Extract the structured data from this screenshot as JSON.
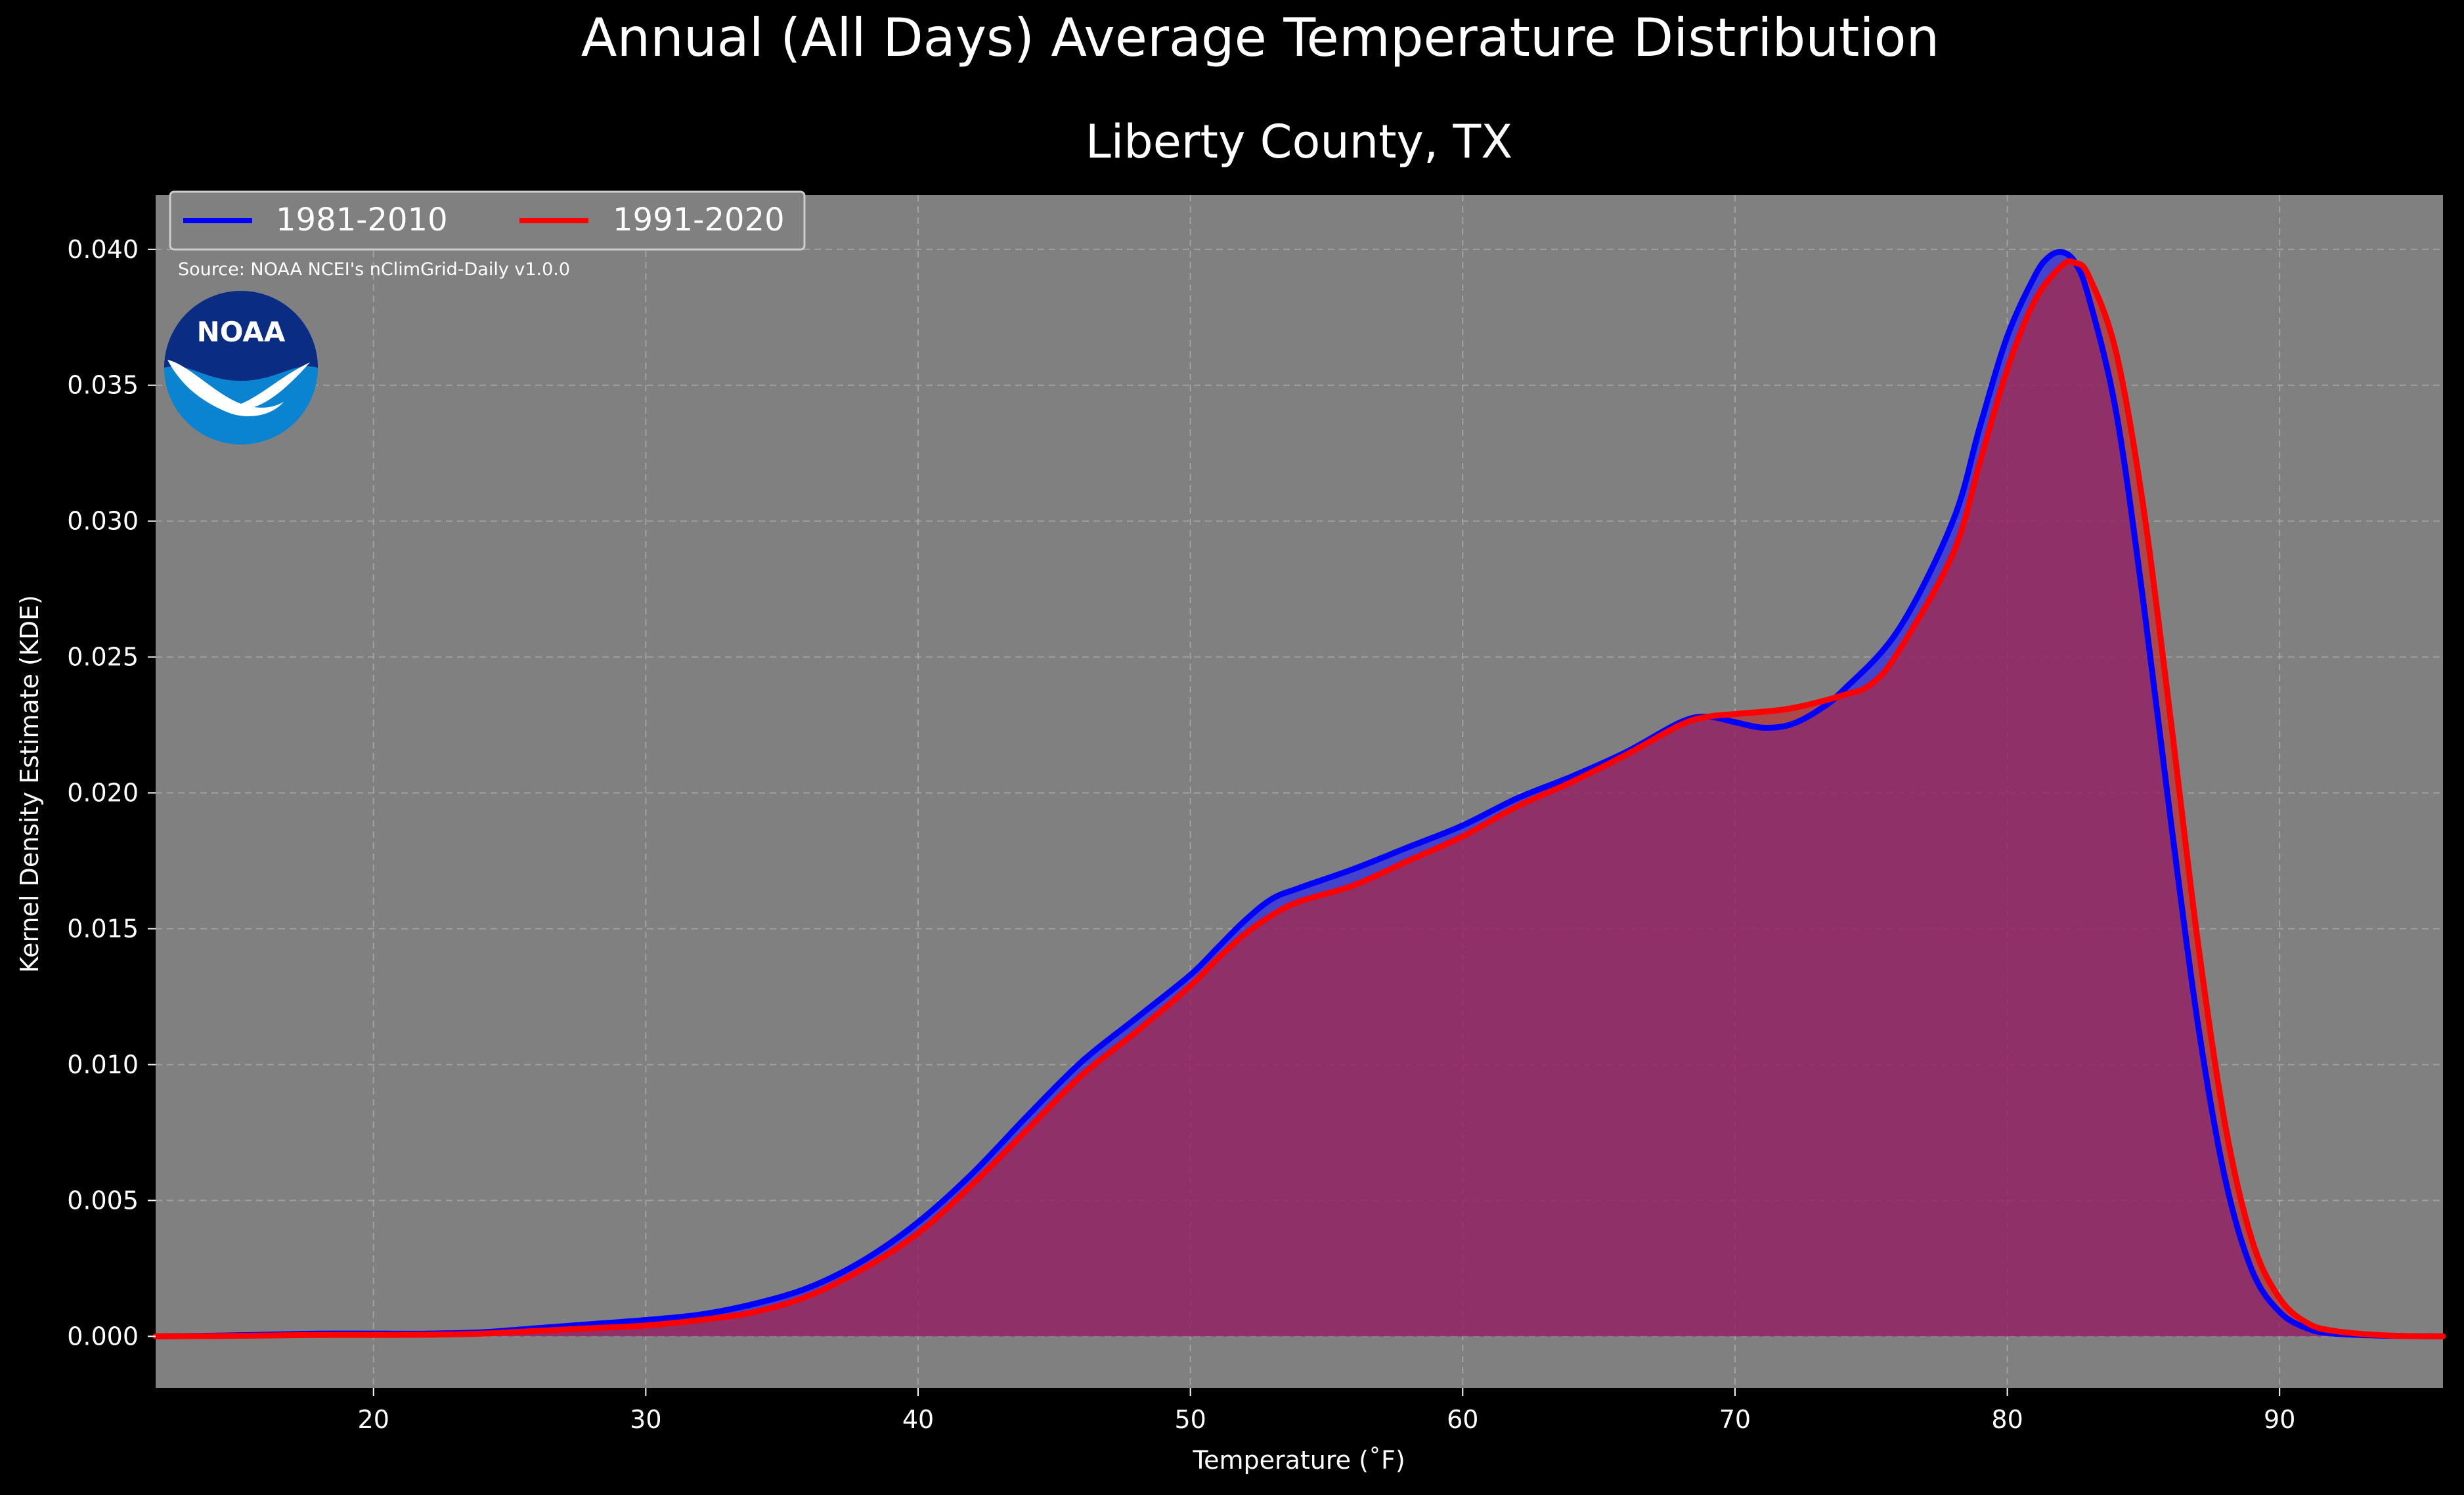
{
  "chart_data": {
    "type": "area",
    "title": "Annual (All Days) Average Temperature Distribution",
    "subtitle": "Liberty County, TX",
    "xlabel": "Temperature ($^\\circ$F)",
    "xlabel_display": "Temperature (˚F)",
    "ylabel": "Kernel Density Estimate (KDE)",
    "xlim": [
      12,
      96
    ],
    "ylim": [
      -0.0019,
      0.042
    ],
    "x_ticks": [
      20,
      30,
      40,
      50,
      60,
      70,
      80,
      90
    ],
    "y_ticks": [
      0.0,
      0.005,
      0.01,
      0.015,
      0.02,
      0.025,
      0.03,
      0.035,
      0.04
    ],
    "x_tick_labels": [
      "20",
      "30",
      "40",
      "50",
      "60",
      "70",
      "80",
      "90"
    ],
    "y_tick_labels": [
      "0.000",
      "0.005",
      "0.010",
      "0.015",
      "0.020",
      "0.025",
      "0.030",
      "0.035",
      "0.040"
    ],
    "grid": true,
    "legend_position": "top-left",
    "source_note": "Source: NOAA NCEI's nClimGrid-Daily v1.0.0",
    "logo_text": "NOAA",
    "colors": {
      "figure_background": "#000000",
      "axes_background": "#808080",
      "text": "#ffffff",
      "grid": "#b0b0b0",
      "logo_dark": "#0a2d83",
      "logo_light": "#0a84d0"
    },
    "series": [
      {
        "name": "1981-2010",
        "line_color": "#0000ff",
        "fill_color": "#1a1aff",
        "fill_opacity": 0.6,
        "points": [
          [
            12,
            0.0
          ],
          [
            14,
            2e-05
          ],
          [
            16,
            6e-05
          ],
          [
            18,
            0.0001
          ],
          [
            20,
            0.0001
          ],
          [
            22,
            0.0001
          ],
          [
            24,
            0.00015
          ],
          [
            26,
            0.0003
          ],
          [
            28,
            0.00045
          ],
          [
            30,
            0.0006
          ],
          [
            32,
            0.0008
          ],
          [
            34,
            0.0012
          ],
          [
            36,
            0.0018
          ],
          [
            38,
            0.0028
          ],
          [
            40,
            0.0042
          ],
          [
            42,
            0.006
          ],
          [
            44,
            0.0081
          ],
          [
            46,
            0.0101
          ],
          [
            48,
            0.0117
          ],
          [
            50,
            0.0133
          ],
          [
            51,
            0.0143
          ],
          [
            52,
            0.0153
          ],
          [
            53,
            0.0161
          ],
          [
            54,
            0.0165
          ],
          [
            56,
            0.0172
          ],
          [
            58,
            0.018
          ],
          [
            60,
            0.0188
          ],
          [
            62,
            0.0198
          ],
          [
            64,
            0.0206
          ],
          [
            66,
            0.0215
          ],
          [
            68,
            0.0226
          ],
          [
            69,
            0.0228
          ],
          [
            70,
            0.0226
          ],
          [
            71,
            0.0224
          ],
          [
            72,
            0.0225
          ],
          [
            73,
            0.023
          ],
          [
            74,
            0.0238
          ],
          [
            76,
            0.026
          ],
          [
            78,
            0.03
          ],
          [
            79,
            0.0335
          ],
          [
            80,
            0.0368
          ],
          [
            81,
            0.039
          ],
          [
            81.5,
            0.0397
          ],
          [
            82,
            0.0399
          ],
          [
            82.5,
            0.0395
          ],
          [
            83,
            0.0382
          ],
          [
            84,
            0.034
          ],
          [
            85,
            0.027
          ],
          [
            86,
            0.019
          ],
          [
            87,
            0.0115
          ],
          [
            88,
            0.0058
          ],
          [
            89,
            0.0024
          ],
          [
            90,
            0.0009
          ],
          [
            91,
            0.0003
          ],
          [
            92,
            0.0001
          ],
          [
            94,
            2e-05
          ],
          [
            96,
            0.0
          ]
        ]
      },
      {
        "name": "1991-2020",
        "line_color": "#ff0000",
        "fill_color": "#c42424",
        "fill_opacity": 0.6,
        "points": [
          [
            12,
            0.0
          ],
          [
            14,
            1e-05
          ],
          [
            16,
            3e-05
          ],
          [
            18,
            5e-05
          ],
          [
            20,
            5e-05
          ],
          [
            22,
            6e-05
          ],
          [
            24,
            0.0001
          ],
          [
            26,
            0.0002
          ],
          [
            28,
            0.0003
          ],
          [
            30,
            0.0004
          ],
          [
            32,
            0.0006
          ],
          [
            34,
            0.0009
          ],
          [
            36,
            0.0015
          ],
          [
            38,
            0.0025
          ],
          [
            40,
            0.0038
          ],
          [
            42,
            0.0056
          ],
          [
            44,
            0.0076
          ],
          [
            46,
            0.0096
          ],
          [
            48,
            0.0112
          ],
          [
            50,
            0.0129
          ],
          [
            51,
            0.0139
          ],
          [
            52,
            0.0148
          ],
          [
            53,
            0.0155
          ],
          [
            54,
            0.016
          ],
          [
            56,
            0.0166
          ],
          [
            58,
            0.0175
          ],
          [
            60,
            0.0184
          ],
          [
            62,
            0.0195
          ],
          [
            64,
            0.0204
          ],
          [
            66,
            0.0214
          ],
          [
            68,
            0.0225
          ],
          [
            69,
            0.0228
          ],
          [
            70,
            0.0229
          ],
          [
            72,
            0.0231
          ],
          [
            74,
            0.0236
          ],
          [
            75,
            0.024
          ],
          [
            76,
            0.0252
          ],
          [
            78,
            0.0288
          ],
          [
            79,
            0.0322
          ],
          [
            80,
            0.0356
          ],
          [
            81,
            0.0381
          ],
          [
            82,
            0.0394
          ],
          [
            82.5,
            0.0395
          ],
          [
            83,
            0.039
          ],
          [
            84,
            0.0362
          ],
          [
            85,
            0.0305
          ],
          [
            86,
            0.0227
          ],
          [
            87,
            0.0145
          ],
          [
            88,
            0.0078
          ],
          [
            89,
            0.0035
          ],
          [
            90,
            0.0014
          ],
          [
            91,
            0.0005
          ],
          [
            92,
            0.0002
          ],
          [
            94,
            3e-05
          ],
          [
            96,
            0.0
          ]
        ]
      }
    ]
  }
}
